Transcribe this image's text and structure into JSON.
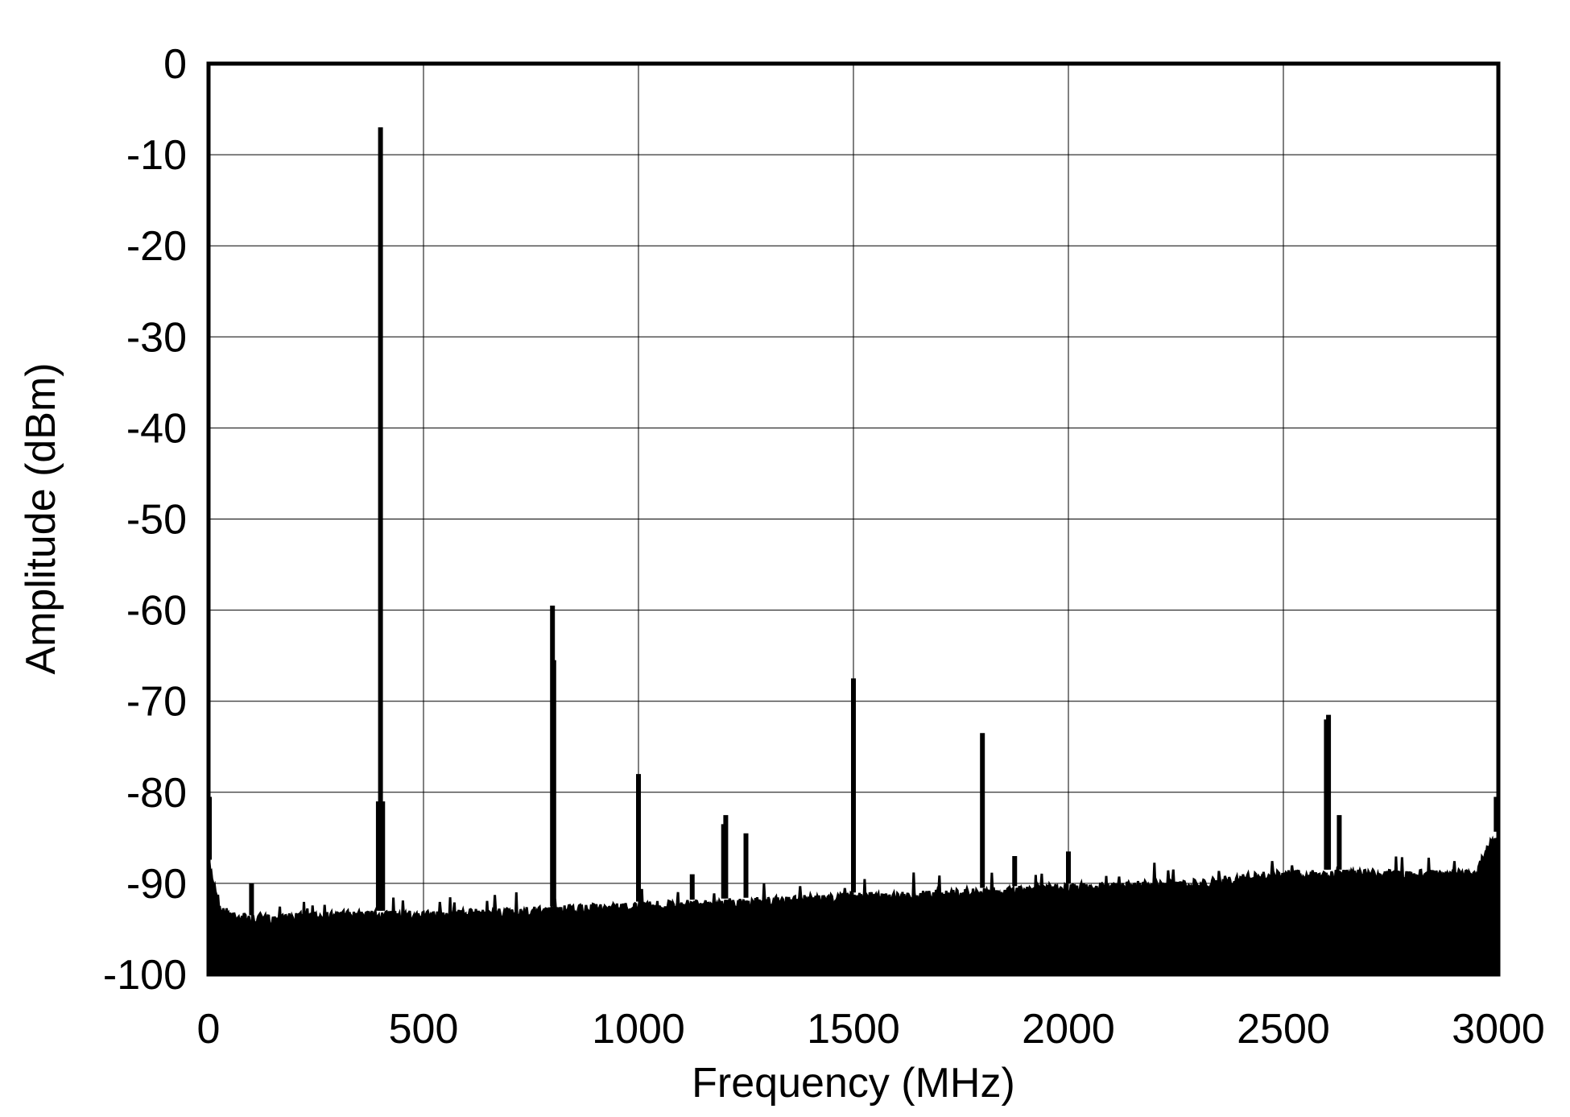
{
  "chart_data": {
    "type": "line",
    "title": "",
    "xlabel": "Frequency (MHz)",
    "ylabel": "Amplitude (dBm)",
    "xlim": [
      0,
      3000
    ],
    "ylim": [
      -100,
      0
    ],
    "xticks": [
      "0",
      "500",
      "1000",
      "1500",
      "2000",
      "2500",
      "3000"
    ],
    "yticks": [
      "0",
      "-10",
      "-20",
      "-30",
      "-40",
      "-50",
      "-60",
      "-70",
      "-80",
      "-90",
      "-100"
    ],
    "grid": true,
    "line_color": "#000000",
    "noise_floor": {
      "x": [
        0,
        10,
        30,
        100,
        300,
        500,
        800,
        1000,
        1300,
        1500,
        1800,
        2000,
        2300,
        2500,
        2950,
        2970,
        3000
      ],
      "y": [
        -87,
        -89,
        -92.5,
        -93.5,
        -93,
        -93,
        -92.5,
        -92,
        -91.5,
        -91,
        -90.5,
        -90,
        -89.5,
        -88.5,
        -88.5,
        -86,
        -84
      ]
    },
    "peaks": {
      "x": [
        2,
        100,
        395,
        400,
        405,
        800,
        803,
        1000,
        1125,
        1198,
        1203,
        1250,
        1500,
        1800,
        1875,
        2000,
        2600,
        2605,
        2630,
        2995
      ],
      "y": [
        -80.5,
        -90,
        -81,
        -7,
        -81,
        -59.5,
        -65.5,
        -78,
        -89,
        -83.5,
        -82.5,
        -84.5,
        -67.5,
        -73.5,
        -87,
        -86.5,
        -72,
        -71.5,
        -82.5,
        -80.5
      ]
    }
  }
}
